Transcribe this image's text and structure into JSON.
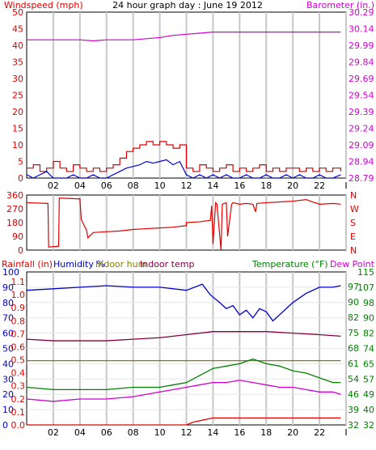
{
  "title": "24 hour graph day : June 19 2012",
  "colors": {
    "grid": "#c8c8c8",
    "frame": "#000000",
    "background": "#ffffff",
    "red": "#e00000",
    "blue": "#0000cc",
    "magenta": "#d000d0",
    "green": "#008000",
    "olive": "#808000",
    "maroon": "#800040",
    "olive_label": "#808000",
    "green_label": "#008000"
  },
  "chart_data": [
    {
      "id": "wind-barometer",
      "type": "line",
      "left_label": "Windspeed (mph)",
      "right_label": "Barometer (in.)",
      "ylim_left": [
        0,
        50
      ],
      "yticks_left": [
        "50",
        "45",
        "40",
        "35",
        "30",
        "25",
        "20",
        "15",
        "10",
        "5",
        "0"
      ],
      "ylim_right": [
        28.79,
        30.29
      ],
      "yticks_right": [
        "30.29",
        "30.14",
        "29.99",
        "29.84",
        "29.69",
        "29.54",
        "29.39",
        "29.24",
        "29.09",
        "28.94",
        "28.79"
      ],
      "xlim": [
        0,
        24
      ],
      "xticks": [
        "02",
        "04",
        "06",
        "08",
        "10",
        "12",
        "14",
        "16",
        "18",
        "20",
        "22",
        "I"
      ],
      "series": [
        {
          "axis": "right",
          "color": "magenta",
          "style": "line",
          "x": [
            0,
            2,
            4,
            5,
            6,
            7,
            8,
            9,
            10,
            11,
            12,
            13,
            14,
            16,
            18,
            20,
            22,
            23.6
          ],
          "y": [
            30.04,
            30.04,
            30.04,
            30.03,
            30.04,
            30.04,
            30.04,
            30.05,
            30.06,
            30.08,
            30.09,
            30.1,
            30.11,
            30.11,
            30.11,
            30.11,
            30.11,
            30.11
          ]
        },
        {
          "axis": "left",
          "color": "red",
          "style": "step",
          "x": [
            0,
            0.5,
            1,
            1.5,
            2,
            2.5,
            3,
            3.5,
            4,
            4.5,
            5,
            5.5,
            6,
            6.5,
            7,
            7.5,
            8,
            8.5,
            9,
            9.5,
            10,
            10.5,
            11,
            11.5,
            12,
            12.5,
            13,
            13.5,
            14,
            14.5,
            15,
            15.5,
            16,
            16.5,
            17,
            17.5,
            18,
            18.5,
            19,
            19.5,
            20,
            20.5,
            21,
            21.5,
            22,
            22.5,
            23,
            23.6
          ],
          "y": [
            3,
            4,
            2,
            3,
            5,
            3,
            2,
            4,
            3,
            2,
            3,
            2,
            3,
            4,
            6,
            8,
            9,
            10,
            11,
            10,
            11,
            10,
            9,
            10,
            3,
            2,
            4,
            3,
            2,
            3,
            4,
            2,
            3,
            2,
            3,
            4,
            2,
            3,
            2,
            3,
            3,
            2,
            3,
            2,
            3,
            2,
            3,
            2
          ]
        },
        {
          "axis": "left",
          "color": "blue",
          "style": "line",
          "x": [
            0,
            0.5,
            1,
            1.5,
            2,
            2.5,
            3,
            3.5,
            4,
            4.5,
            5,
            5.5,
            6,
            6.5,
            7,
            7.5,
            8,
            8.5,
            9,
            9.5,
            10,
            10.5,
            11,
            11.5,
            12,
            12.5,
            13,
            13.5,
            14,
            14.5,
            15,
            15.5,
            16,
            16.5,
            17,
            17.5,
            18,
            18.5,
            19,
            19.5,
            20,
            20.5,
            21,
            21.5,
            22,
            22.5,
            23,
            23.6
          ],
          "y": [
            1,
            0,
            1,
            2,
            0,
            0,
            0,
            1,
            0,
            0,
            1,
            0,
            0,
            1,
            2,
            3,
            3.5,
            4,
            5,
            4.5,
            5,
            5.5,
            4,
            5,
            1,
            0,
            1,
            0,
            1,
            0,
            1,
            0,
            0,
            1,
            0,
            0,
            1,
            0,
            0,
            1,
            0,
            1,
            0,
            0,
            1,
            0,
            0,
            1
          ]
        }
      ]
    },
    {
      "id": "wind-direction",
      "type": "line",
      "left_ticks": [
        "360",
        "270",
        "180",
        "90",
        "0"
      ],
      "ylim_left": [
        0,
        360
      ],
      "right_ticks": [
        "N",
        "W",
        "S",
        "E",
        "N"
      ],
      "xlim": [
        0,
        24
      ],
      "series": [
        {
          "axis": "left",
          "color": "red",
          "style": "line",
          "x": [
            0,
            1.6,
            1.65,
            2.4,
            2.45,
            4,
            4.1,
            4.5,
            4.6,
            5,
            6,
            7,
            8,
            9,
            10,
            11,
            12,
            12,
            13,
            13.8,
            13.9,
            14,
            14.2,
            14.3,
            14.6,
            14.7,
            15,
            15.1,
            15.4,
            15.5,
            16,
            16.5,
            17,
            17.2,
            17.3,
            18,
            19,
            20,
            21,
            22,
            23,
            23.6
          ],
          "y": [
            310,
            305,
            20,
            25,
            340,
            335,
            200,
            130,
            80,
            115,
            120,
            125,
            135,
            140,
            145,
            150,
            160,
            180,
            185,
            195,
            290,
            40,
            310,
            300,
            0,
            300,
            310,
            90,
            300,
            310,
            300,
            305,
            300,
            250,
            305,
            310,
            315,
            320,
            330,
            300,
            305,
            300
          ]
        }
      ]
    },
    {
      "id": "humidity-temperature",
      "type": "line",
      "left_labels": [
        {
          "text": "Rainfall (in)",
          "color": "red"
        },
        {
          "text": "Humidity %",
          "color": "blue"
        },
        {
          "text": "Indoor hum",
          "color": "olive_label"
        },
        {
          "text": "Indoor temp",
          "color": "maroon"
        }
      ],
      "right_labels": [
        {
          "text": "Temperature (°F)",
          "color": "green_label"
        },
        {
          "text": "Dew Point",
          "color": "magenta"
        }
      ],
      "yticks_humidity": [
        "100",
        "90",
        "80",
        "70",
        "60",
        "50",
        "40",
        "30",
        "20",
        "10",
        "0"
      ],
      "yticks_rain": [
        "1.1",
        "1.0",
        "0.9",
        "0.8",
        "0.7",
        "0.6",
        "0.5",
        "0.4",
        "0.3",
        "0.2",
        "0.1",
        "0.0"
      ],
      "yticks_indoor_temp": [
        "115",
        "107",
        "98",
        "90",
        "82",
        "74",
        "65",
        "57",
        "49",
        "40",
        "32"
      ],
      "yticks_temp": [
        "97",
        "90",
        "82",
        "75",
        "68",
        "61",
        "54",
        "46",
        "39",
        "32"
      ],
      "xlim": [
        0,
        24
      ],
      "xticks": [
        "02",
        "04",
        "06",
        "08",
        "10",
        "12",
        "14",
        "16",
        "18",
        "20",
        "22",
        "I"
      ],
      "series": [
        {
          "name": "Humidity %",
          "color": "blue",
          "ylim": [
            0,
            100
          ],
          "x": [
            0,
            2,
            4,
            6,
            8,
            10,
            12,
            13.2,
            13.8,
            14.5,
            15,
            15.5,
            16,
            16.5,
            17,
            17.5,
            18,
            18.5,
            19,
            19.5,
            20,
            21,
            22,
            23,
            23.6
          ],
          "y": [
            88,
            89,
            90,
            91,
            90,
            90,
            88,
            92,
            85,
            80,
            76,
            78,
            72,
            75,
            70,
            76,
            74,
            68,
            72,
            76,
            80,
            86,
            90,
            90,
            91
          ]
        },
        {
          "name": "Indoor temp",
          "color": "maroon",
          "ylim": [
            0,
            100
          ],
          "x": [
            0,
            2,
            4,
            6,
            8,
            10,
            12,
            14,
            16,
            18,
            20,
            22,
            23.6
          ],
          "y": [
            56,
            55,
            55,
            55,
            56,
            57,
            59,
            61,
            61,
            61,
            60,
            59,
            58
          ]
        },
        {
          "name": "Indoor hum",
          "color": "olive",
          "ylim": [
            0,
            100
          ],
          "x": [
            0,
            2,
            4,
            6,
            8,
            10,
            12,
            14,
            16,
            18,
            20,
            22,
            23.6
          ],
          "y": [
            42,
            42,
            42,
            42,
            42,
            42,
            42,
            42,
            42,
            42,
            42,
            42,
            42
          ]
        },
        {
          "name": "Temperature (°F)",
          "color": "green",
          "ylim": [
            32,
            97
          ],
          "x": [
            0,
            2,
            4,
            6,
            8,
            10,
            11,
            12,
            13,
            14,
            15,
            16,
            17,
            18,
            19,
            20,
            21,
            22,
            23,
            23.6
          ],
          "y": [
            48,
            47,
            47,
            47,
            48,
            48,
            49,
            50,
            53,
            56,
            57,
            58,
            60,
            58,
            57,
            55,
            54,
            52,
            50,
            50
          ]
        },
        {
          "name": "Dew Point",
          "color": "magenta",
          "ylim": [
            32,
            97
          ],
          "x": [
            0,
            2,
            4,
            6,
            8,
            10,
            11,
            12,
            13,
            14,
            15,
            16,
            17,
            18,
            19,
            20,
            21,
            22,
            23,
            23.6
          ],
          "y": [
            43,
            42,
            43,
            43,
            44,
            46,
            47,
            48,
            49,
            50,
            50,
            51,
            50,
            49,
            48,
            48,
            47,
            46,
            46,
            45
          ]
        },
        {
          "name": "Rainfall (in)",
          "color": "red",
          "ylim": [
            0,
            1.1
          ],
          "x": [
            0,
            2,
            4,
            6,
            8,
            10,
            12,
            12.5,
            13.5,
            14,
            16,
            18,
            20,
            22,
            23.6
          ],
          "y": [
            0,
            0,
            0,
            0,
            0,
            0,
            0,
            0.02,
            0.04,
            0.05,
            0.05,
            0.05,
            0.05,
            0.05,
            0.05
          ]
        }
      ]
    }
  ]
}
